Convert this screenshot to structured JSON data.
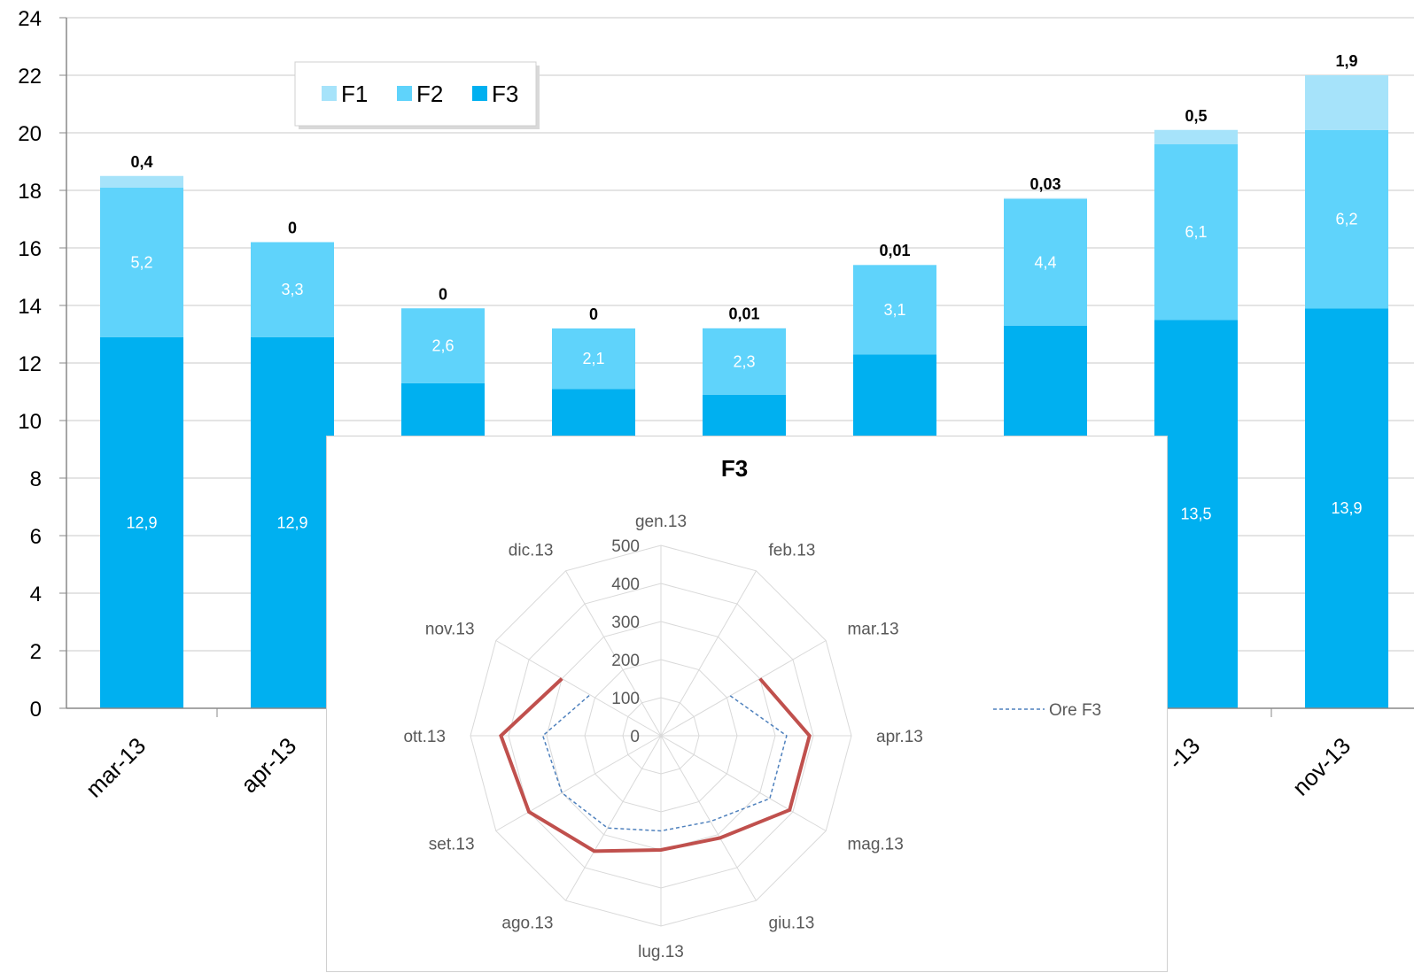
{
  "colors": {
    "F1": "#a6e3fa",
    "F2": "#5fd3fb",
    "F3": "#00b0f0",
    "grid": "#c8c8c8",
    "radar_solid": "#c0504d",
    "radar_dashed": "#4f81bd"
  },
  "chart_data": [
    {
      "type": "bar",
      "stacked": true,
      "categories": [
        "mar-13",
        "apr-13",
        "",
        "",
        "",
        "",
        "",
        "",
        "nov-13"
      ],
      "category_labels_visible": [
        "mar-13",
        "apr-13",
        "",
        "",
        "",
        "",
        "",
        "-13",
        "nov-13"
      ],
      "series": [
        {
          "name": "F3",
          "values": [
            12.9,
            12.9,
            11.3,
            11.1,
            10.9,
            12.3,
            13.3,
            13.5,
            13.9
          ],
          "labels": [
            "12,9",
            "12,9",
            "",
            "",
            "",
            "",
            "",
            "13,5",
            "13,9"
          ]
        },
        {
          "name": "F2",
          "values": [
            5.2,
            3.3,
            2.6,
            2.1,
            2.3,
            3.1,
            4.4,
            6.1,
            6.2
          ],
          "labels": [
            "5,2",
            "3,3",
            "2,6",
            "2,1",
            "2,3",
            "3,1",
            "4,4",
            "6,1",
            "6,2"
          ]
        },
        {
          "name": "F1",
          "values": [
            0.4,
            0,
            0,
            0,
            0.01,
            0.01,
            0.03,
            0.5,
            1.9
          ],
          "labels": [
            "0,4",
            "0",
            "0",
            "0",
            "0,01",
            "0,01",
            "0,03",
            "0,5",
            "1,9"
          ]
        }
      ],
      "yticks": [
        "0",
        "2",
        "4",
        "6",
        "8",
        "10",
        "12",
        "14",
        "16",
        "18",
        "20",
        "22",
        "24"
      ],
      "ylim": [
        0,
        24
      ],
      "grid": true,
      "legend": {
        "position": "top-left",
        "entries": [
          "F1",
          "F2",
          "F3"
        ]
      }
    },
    {
      "type": "radar",
      "title": "F3",
      "categories": [
        "gen.13",
        "feb.13",
        "mar.13",
        "apr.13",
        "mag.13",
        "giu.13",
        "lug.13",
        "ago.13",
        "set.13",
        "ott.13",
        "nov.13",
        "dic.13"
      ],
      "rticks": [
        "0",
        "100",
        "200",
        "300",
        "400",
        "500"
      ],
      "rlim": [
        0,
        500
      ],
      "series": [
        {
          "name": "",
          "style": "solid",
          "values": [
            null,
            null,
            300,
            390,
            390,
            310,
            300,
            350,
            400,
            420,
            300,
            null
          ]
        },
        {
          "name": "Ore F3",
          "style": "dashed",
          "values": [
            null,
            null,
            210,
            330,
            330,
            260,
            250,
            280,
            300,
            310,
            215,
            null
          ]
        }
      ],
      "legend": {
        "position": "right",
        "entries": [
          "Ore F3"
        ]
      }
    }
  ]
}
